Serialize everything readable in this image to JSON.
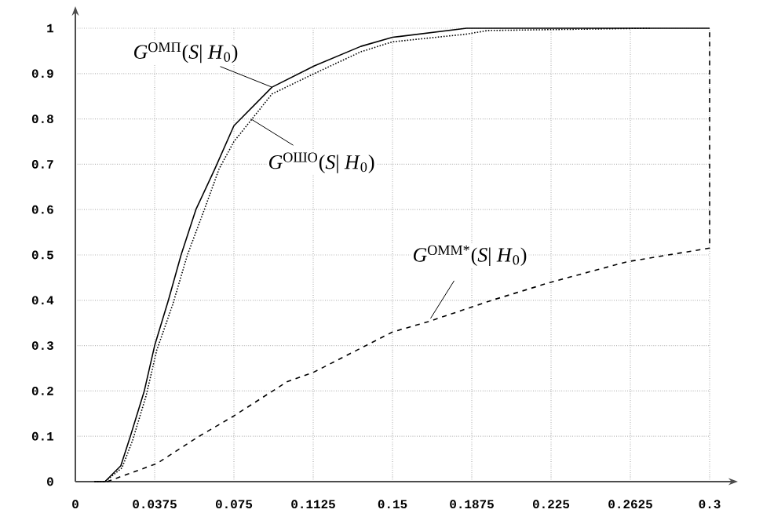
{
  "chart_data": {
    "type": "line",
    "xlim": [
      0,
      0.3
    ],
    "ylim": [
      0,
      1
    ],
    "xticks": [
      0,
      0.0375,
      0.075,
      0.1125,
      0.15,
      0.1875,
      0.225,
      0.2625,
      0.3
    ],
    "yticks": [
      0,
      0.1,
      0.2,
      0.3,
      0.4,
      0.5,
      0.6,
      0.7,
      0.8,
      0.9,
      1
    ],
    "grid": true,
    "series": [
      {
        "color": "#000000",
        "line_style": "solid",
        "x": [
          0.009,
          0.014,
          0.0215,
          0.026,
          0.0326,
          0.0375,
          0.044,
          0.05,
          0.057,
          0.066,
          0.075,
          0.093,
          0.113,
          0.135,
          0.15,
          0.185,
          0.3
        ],
        "values": [
          0,
          0,
          0.035,
          0.1,
          0.2,
          0.3,
          0.4,
          0.5,
          0.6,
          0.69,
          0.785,
          0.87,
          0.917,
          0.96,
          0.98,
          1.0,
          1.0
        ]
      },
      {
        "color": "#000000",
        "line_style": "dotted",
        "x": [
          0.009,
          0.014,
          0.022,
          0.027,
          0.0335,
          0.0385,
          0.046,
          0.053,
          0.061,
          0.068,
          0.075,
          0.093,
          0.113,
          0.135,
          0.15,
          0.185,
          0.195,
          0.272
        ],
        "values": [
          0,
          0,
          0.03,
          0.09,
          0.19,
          0.29,
          0.39,
          0.5,
          0.6,
          0.69,
          0.75,
          0.855,
          0.9,
          0.948,
          0.97,
          0.987,
          0.995,
          1.0
        ]
      },
      {
        "color": "#000000",
        "line_style": "dashed",
        "x": [
          0.015,
          0.0386,
          0.0585,
          0.075,
          0.1,
          0.113,
          0.15,
          0.167,
          0.197,
          0.225,
          0.261,
          0.3,
          0.3
        ],
        "values": [
          0,
          0.04,
          0.1,
          0.145,
          0.22,
          0.242,
          0.33,
          0.353,
          0.4,
          0.44,
          0.485,
          0.515,
          1.0
        ]
      }
    ],
    "annotations": [
      {
        "text": "*G*$^{ОМП}$(*S*| *H*$_{0}$)",
        "x": 0.093,
        "y": 0.87
      },
      {
        "text": "*G*$^{ОШО}$(*S*| *H*$_{0}$)",
        "x": 0.083,
        "y": 0.8
      },
      {
        "text": "*G*$^{ОММ*}$(*S*| *H*$_{0}$)",
        "x": 0.168,
        "y": 0.36
      }
    ]
  }
}
